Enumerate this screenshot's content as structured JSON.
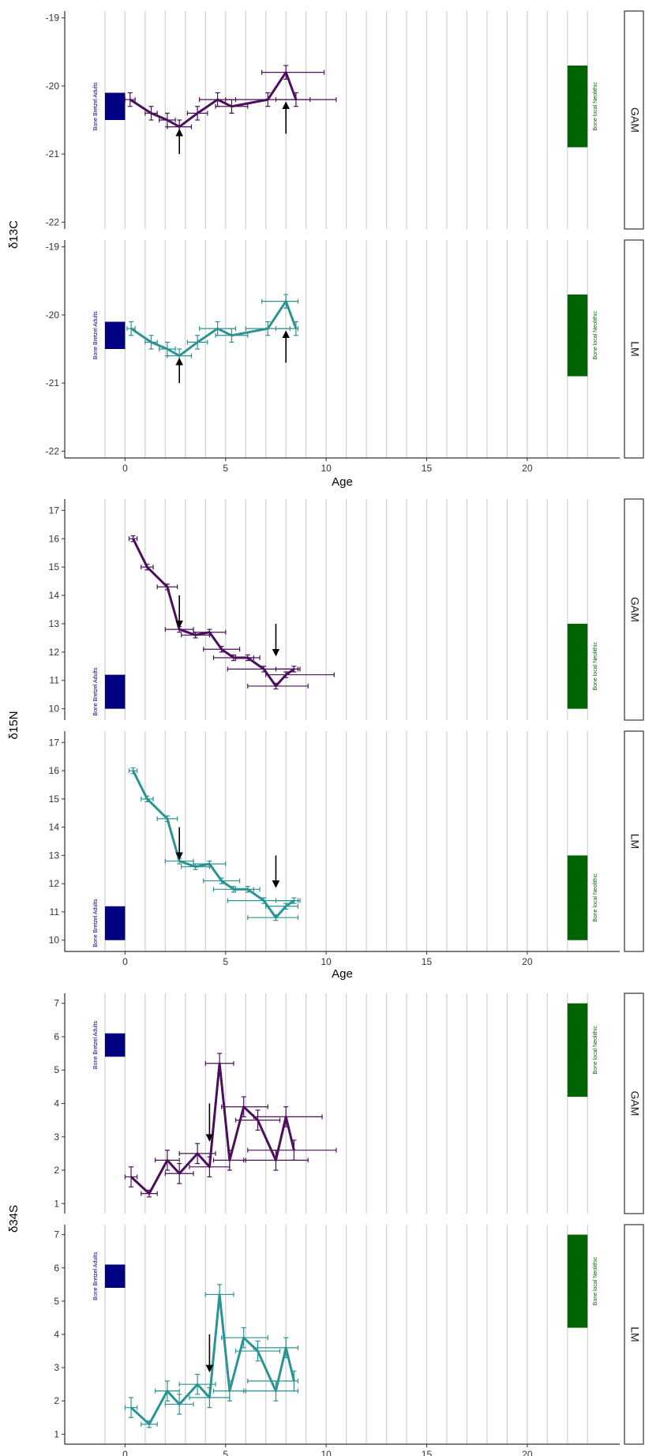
{
  "colors": {
    "GAM": "#4b0f5c",
    "LM": "#2a9494",
    "ref_adults": "#000080",
    "ref_neolithic": "#006400",
    "grid": "#cfcfcf"
  },
  "chart_data": [
    {
      "type": "line",
      "ylabel": "δ13C",
      "xlabel": "Age",
      "xlim": [
        -3,
        24.6
      ],
      "x_ticks": [
        0,
        5,
        10,
        15,
        20
      ],
      "x_grid": [
        -1,
        0,
        1,
        2,
        3,
        4,
        5,
        6,
        7,
        8,
        9,
        10,
        11,
        12,
        13,
        14,
        15,
        16,
        17,
        18,
        19,
        20,
        21,
        22,
        23
      ],
      "ylim": [
        -22.1,
        -18.9
      ],
      "y_ticks": [
        -22,
        -21,
        -20,
        -19
      ],
      "reference": [
        {
          "label": "Bone Bretzel Adults",
          "x": [
            -1,
            0
          ],
          "y": [
            -20.5,
            -20.1
          ]
        },
        {
          "label": "Bone local Neolithic",
          "x": [
            22,
            23
          ],
          "y": [
            -20.9,
            -19.7
          ]
        }
      ],
      "panels": [
        {
          "strip": "GAM",
          "series": "GAM",
          "points": [
            {
              "x": 0.25,
              "y": -20.2,
              "xmin": 0.0,
              "xmax": 0.5,
              "ymin": -20.3,
              "ymax": -20.1
            },
            {
              "x": 1.3,
              "y": -20.4,
              "xmin": 1.0,
              "xmax": 1.6,
              "ymin": -20.5,
              "ymax": -20.3
            },
            {
              "x": 2.1,
              "y": -20.5,
              "xmin": 1.7,
              "xmax": 2.5,
              "ymin": -20.6,
              "ymax": -20.4
            },
            {
              "x": 2.7,
              "y": -20.6,
              "xmin": 2.1,
              "xmax": 3.3,
              "ymin": -20.7,
              "ymax": -20.5
            },
            {
              "x": 3.6,
              "y": -20.4,
              "xmin": 3.1,
              "xmax": 4.1,
              "ymin": -20.5,
              "ymax": -20.3
            },
            {
              "x": 4.6,
              "y": -20.2,
              "xmin": 3.7,
              "xmax": 5.5,
              "ymin": -20.3,
              "ymax": -20.1
            },
            {
              "x": 5.3,
              "y": -20.3,
              "xmin": 4.5,
              "xmax": 6.1,
              "ymin": -20.4,
              "ymax": -20.2
            },
            {
              "x": 7.1,
              "y": -20.2,
              "xmin": 5.0,
              "xmax": 9.2,
              "ymin": -20.3,
              "ymax": -20.1
            },
            {
              "x": 8.0,
              "y": -19.8,
              "xmin": 6.8,
              "xmax": 9.9,
              "ymin": -19.9,
              "ymax": -19.7
            },
            {
              "x": 8.5,
              "y": -20.2,
              "xmin": 7.5,
              "xmax": 10.5,
              "ymin": -20.3,
              "ymax": -20.1
            }
          ],
          "arrows": [
            {
              "x": 2.7,
              "from": -21.0,
              "to": -20.65
            },
            {
              "x": 8.0,
              "from": -20.7,
              "to": -20.25
            }
          ]
        },
        {
          "strip": "LM",
          "series": "LM",
          "points": [
            {
              "x": 0.3,
              "y": -20.2,
              "xmin": 0.1,
              "xmax": 0.5,
              "ymin": -20.3,
              "ymax": -20.1
            },
            {
              "x": 1.3,
              "y": -20.4,
              "xmin": 1.0,
              "xmax": 1.6,
              "ymin": -20.5,
              "ymax": -20.3
            },
            {
              "x": 2.1,
              "y": -20.5,
              "xmin": 1.7,
              "xmax": 2.5,
              "ymin": -20.6,
              "ymax": -20.4
            },
            {
              "x": 2.7,
              "y": -20.6,
              "xmin": 2.1,
              "xmax": 3.3,
              "ymin": -20.7,
              "ymax": -20.5
            },
            {
              "x": 3.6,
              "y": -20.4,
              "xmin": 3.1,
              "xmax": 4.1,
              "ymin": -20.5,
              "ymax": -20.3
            },
            {
              "x": 4.6,
              "y": -20.2,
              "xmin": 3.7,
              "xmax": 5.5,
              "ymin": -20.3,
              "ymax": -20.1
            },
            {
              "x": 5.3,
              "y": -20.3,
              "xmin": 4.5,
              "xmax": 6.1,
              "ymin": -20.4,
              "ymax": -20.2
            },
            {
              "x": 7.1,
              "y": -20.2,
              "xmin": 6.0,
              "xmax": 8.2,
              "ymin": -20.3,
              "ymax": -20.1
            },
            {
              "x": 8.0,
              "y": -19.8,
              "xmin": 6.8,
              "xmax": 8.6,
              "ymin": -19.9,
              "ymax": -19.7
            },
            {
              "x": 8.5,
              "y": -20.2,
              "xmin": 7.5,
              "xmax": 8.6,
              "ymin": -20.3,
              "ymax": -20.1
            }
          ],
          "arrows": [
            {
              "x": 2.7,
              "from": -21.0,
              "to": -20.65
            },
            {
              "x": 8.0,
              "from": -20.7,
              "to": -20.25
            }
          ]
        }
      ]
    },
    {
      "type": "line",
      "ylabel": "δ15N",
      "xlabel": "Age",
      "xlim": [
        -3,
        24.6
      ],
      "x_ticks": [
        0,
        5,
        10,
        15,
        20
      ],
      "x_grid": [
        -1,
        0,
        1,
        2,
        3,
        4,
        5,
        6,
        7,
        8,
        9,
        10,
        11,
        12,
        13,
        14,
        15,
        16,
        17,
        18,
        19,
        20,
        21,
        22,
        23
      ],
      "ylim": [
        9.6,
        17.4
      ],
      "y_ticks": [
        10,
        11,
        12,
        13,
        14,
        15,
        16,
        17
      ],
      "reference": [
        {
          "label": "Bone Bretzel Adults",
          "x": [
            -1,
            0
          ],
          "y": [
            10.0,
            11.2
          ]
        },
        {
          "label": "Bone local Neolithic",
          "x": [
            22,
            23
          ],
          "y": [
            10.0,
            13.0
          ]
        }
      ],
      "panels": [
        {
          "strip": "GAM",
          "series": "GAM",
          "points": [
            {
              "x": 0.4,
              "y": 16.0,
              "xmin": 0.2,
              "xmax": 0.6,
              "ymin": 15.9,
              "ymax": 16.1
            },
            {
              "x": 1.1,
              "y": 15.0,
              "xmin": 0.8,
              "xmax": 1.4,
              "ymin": 14.9,
              "ymax": 15.1
            },
            {
              "x": 2.1,
              "y": 14.3,
              "xmin": 1.6,
              "xmax": 2.6,
              "ymin": 14.2,
              "ymax": 14.4
            },
            {
              "x": 2.7,
              "y": 12.8,
              "xmin": 2.0,
              "xmax": 3.4,
              "ymin": 12.7,
              "ymax": 12.9
            },
            {
              "x": 3.5,
              "y": 12.6,
              "xmin": 2.8,
              "xmax": 4.2,
              "ymin": 12.5,
              "ymax": 12.7
            },
            {
              "x": 4.2,
              "y": 12.7,
              "xmin": 3.4,
              "xmax": 5.0,
              "ymin": 12.6,
              "ymax": 12.8
            },
            {
              "x": 4.8,
              "y": 12.1,
              "xmin": 3.9,
              "xmax": 5.7,
              "ymin": 12.0,
              "ymax": 12.2
            },
            {
              "x": 5.4,
              "y": 11.8,
              "xmin": 4.4,
              "xmax": 6.4,
              "ymin": 11.7,
              "ymax": 11.9
            },
            {
              "x": 6.1,
              "y": 11.8,
              "xmin": 5.5,
              "xmax": 6.7,
              "ymin": 11.7,
              "ymax": 11.9
            },
            {
              "x": 6.9,
              "y": 11.4,
              "xmin": 5.1,
              "xmax": 8.7,
              "ymin": 11.3,
              "ymax": 11.5
            },
            {
              "x": 7.5,
              "y": 10.8,
              "xmin": 6.1,
              "xmax": 9.1,
              "ymin": 10.7,
              "ymax": 10.9
            },
            {
              "x": 8.0,
              "y": 11.2,
              "xmin": 7.0,
              "xmax": 10.4,
              "ymin": 11.1,
              "ymax": 11.3
            },
            {
              "x": 8.4,
              "y": 11.4,
              "xmin": 7.5,
              "xmax": 8.6,
              "ymin": 11.3,
              "ymax": 11.5
            }
          ],
          "arrows": [
            {
              "x": 2.7,
              "from": 14.0,
              "to": 12.9
            },
            {
              "x": 7.5,
              "from": 13.0,
              "to": 11.9
            }
          ]
        },
        {
          "strip": "LM",
          "series": "LM",
          "points": [
            {
              "x": 0.4,
              "y": 16.0,
              "xmin": 0.2,
              "xmax": 0.6,
              "ymin": 15.9,
              "ymax": 16.1
            },
            {
              "x": 1.1,
              "y": 15.0,
              "xmin": 0.8,
              "xmax": 1.4,
              "ymin": 14.9,
              "ymax": 15.1
            },
            {
              "x": 2.1,
              "y": 14.3,
              "xmin": 1.6,
              "xmax": 2.6,
              "ymin": 14.2,
              "ymax": 14.4
            },
            {
              "x": 2.7,
              "y": 12.8,
              "xmin": 2.0,
              "xmax": 3.4,
              "ymin": 12.7,
              "ymax": 12.9
            },
            {
              "x": 3.5,
              "y": 12.6,
              "xmin": 2.8,
              "xmax": 4.2,
              "ymin": 12.5,
              "ymax": 12.7
            },
            {
              "x": 4.2,
              "y": 12.7,
              "xmin": 3.4,
              "xmax": 5.0,
              "ymin": 12.6,
              "ymax": 12.8
            },
            {
              "x": 4.8,
              "y": 12.1,
              "xmin": 3.9,
              "xmax": 5.7,
              "ymin": 12.0,
              "ymax": 12.2
            },
            {
              "x": 5.4,
              "y": 11.8,
              "xmin": 4.4,
              "xmax": 6.4,
              "ymin": 11.7,
              "ymax": 11.9
            },
            {
              "x": 6.1,
              "y": 11.8,
              "xmin": 5.5,
              "xmax": 6.7,
              "ymin": 11.7,
              "ymax": 11.9
            },
            {
              "x": 6.9,
              "y": 11.4,
              "xmin": 5.1,
              "xmax": 8.7,
              "ymin": 11.3,
              "ymax": 11.5
            },
            {
              "x": 7.5,
              "y": 10.8,
              "xmin": 6.1,
              "xmax": 8.6,
              "ymin": 10.7,
              "ymax": 10.9
            },
            {
              "x": 8.0,
              "y": 11.2,
              "xmin": 7.0,
              "xmax": 8.6,
              "ymin": 11.1,
              "ymax": 11.3
            },
            {
              "x": 8.4,
              "y": 11.4,
              "xmin": 7.5,
              "xmax": 8.6,
              "ymin": 11.3,
              "ymax": 11.5
            }
          ],
          "arrows": [
            {
              "x": 2.7,
              "from": 14.0,
              "to": 12.9
            },
            {
              "x": 7.5,
              "from": 13.0,
              "to": 11.9
            }
          ]
        }
      ]
    },
    {
      "type": "line",
      "ylabel": "δ34S",
      "xlabel": "Age",
      "xlim": [
        -3,
        24.6
      ],
      "x_ticks": [
        0,
        5,
        10,
        15,
        20
      ],
      "x_grid": [
        -1,
        0,
        1,
        2,
        3,
        4,
        5,
        6,
        7,
        8,
        9,
        10,
        11,
        12,
        13,
        14,
        15,
        16,
        17,
        18,
        19,
        20,
        21,
        22,
        23
      ],
      "ylim": [
        0.7,
        7.3
      ],
      "y_ticks": [
        1,
        2,
        3,
        4,
        5,
        6,
        7
      ],
      "reference": [
        {
          "label": "Bone Bretzel Adults",
          "x": [
            -1,
            0
          ],
          "y": [
            5.4,
            6.1
          ]
        },
        {
          "label": "Bone local Neolithic",
          "x": [
            22,
            23
          ],
          "y": [
            4.2,
            7.0
          ]
        }
      ],
      "panels": [
        {
          "strip": "GAM",
          "series": "GAM",
          "points": [
            {
              "x": 0.3,
              "y": 1.8,
              "xmin": 0.0,
              "xmax": 0.6,
              "ymin": 1.5,
              "ymax": 2.1
            },
            {
              "x": 1.2,
              "y": 1.3,
              "xmin": 0.8,
              "xmax": 1.6,
              "ymin": 1.2,
              "ymax": 1.4
            },
            {
              "x": 2.1,
              "y": 2.3,
              "xmin": 1.5,
              "xmax": 2.7,
              "ymin": 2.0,
              "ymax": 2.6
            },
            {
              "x": 2.7,
              "y": 1.9,
              "xmin": 2.0,
              "xmax": 3.4,
              "ymin": 1.6,
              "ymax": 2.2
            },
            {
              "x": 3.6,
              "y": 2.5,
              "xmin": 2.7,
              "xmax": 4.5,
              "ymin": 2.2,
              "ymax": 2.8
            },
            {
              "x": 4.2,
              "y": 2.1,
              "xmin": 3.2,
              "xmax": 5.2,
              "ymin": 1.8,
              "ymax": 2.4
            },
            {
              "x": 4.7,
              "y": 5.2,
              "xmin": 4.0,
              "xmax": 5.4,
              "ymin": 4.9,
              "ymax": 5.5
            },
            {
              "x": 5.2,
              "y": 2.3,
              "xmin": 4.4,
              "xmax": 6.0,
              "ymin": 2.0,
              "ymax": 2.6
            },
            {
              "x": 5.9,
              "y": 3.9,
              "xmin": 4.8,
              "xmax": 7.1,
              "ymin": 3.6,
              "ymax": 4.2
            },
            {
              "x": 6.6,
              "y": 3.5,
              "xmin": 5.5,
              "xmax": 7.7,
              "ymin": 3.2,
              "ymax": 3.8
            },
            {
              "x": 7.5,
              "y": 2.3,
              "xmin": 5.9,
              "xmax": 9.1,
              "ymin": 2.0,
              "ymax": 2.6
            },
            {
              "x": 8.0,
              "y": 3.6,
              "xmin": 6.4,
              "xmax": 9.8,
              "ymin": 3.3,
              "ymax": 3.9
            },
            {
              "x": 8.4,
              "y": 2.6,
              "xmin": 6.1,
              "xmax": 10.5,
              "ymin": 2.3,
              "ymax": 2.9
            }
          ],
          "arrows": [
            {
              "x": 4.2,
              "from": 4.0,
              "to": 2.9
            }
          ]
        },
        {
          "strip": "LM",
          "series": "LM",
          "points": [
            {
              "x": 0.3,
              "y": 1.8,
              "xmin": 0.0,
              "xmax": 0.6,
              "ymin": 1.5,
              "ymax": 2.1
            },
            {
              "x": 1.2,
              "y": 1.3,
              "xmin": 0.8,
              "xmax": 1.6,
              "ymin": 1.2,
              "ymax": 1.4
            },
            {
              "x": 2.1,
              "y": 2.3,
              "xmin": 1.5,
              "xmax": 2.7,
              "ymin": 2.0,
              "ymax": 2.6
            },
            {
              "x": 2.7,
              "y": 1.9,
              "xmin": 2.0,
              "xmax": 3.4,
              "ymin": 1.6,
              "ymax": 2.2
            },
            {
              "x": 3.6,
              "y": 2.5,
              "xmin": 2.7,
              "xmax": 4.5,
              "ymin": 2.2,
              "ymax": 2.8
            },
            {
              "x": 4.2,
              "y": 2.1,
              "xmin": 3.2,
              "xmax": 5.2,
              "ymin": 1.8,
              "ymax": 2.4
            },
            {
              "x": 4.7,
              "y": 5.2,
              "xmin": 4.0,
              "xmax": 5.4,
              "ymin": 4.9,
              "ymax": 5.5
            },
            {
              "x": 5.2,
              "y": 2.3,
              "xmin": 4.4,
              "xmax": 6.0,
              "ymin": 2.0,
              "ymax": 2.6
            },
            {
              "x": 5.9,
              "y": 3.9,
              "xmin": 4.8,
              "xmax": 7.1,
              "ymin": 3.6,
              "ymax": 4.2
            },
            {
              "x": 6.6,
              "y": 3.5,
              "xmin": 5.5,
              "xmax": 7.7,
              "ymin": 3.2,
              "ymax": 3.8
            },
            {
              "x": 7.5,
              "y": 2.3,
              "xmin": 5.9,
              "xmax": 8.6,
              "ymin": 2.0,
              "ymax": 2.6
            },
            {
              "x": 8.0,
              "y": 3.6,
              "xmin": 6.4,
              "xmax": 8.6,
              "ymin": 3.3,
              "ymax": 3.9
            },
            {
              "x": 8.4,
              "y": 2.6,
              "xmin": 6.1,
              "xmax": 8.6,
              "ymin": 2.3,
              "ymax": 2.9
            }
          ],
          "arrows": [
            {
              "x": 4.2,
              "from": 4.0,
              "to": 2.9
            }
          ]
        }
      ]
    }
  ]
}
